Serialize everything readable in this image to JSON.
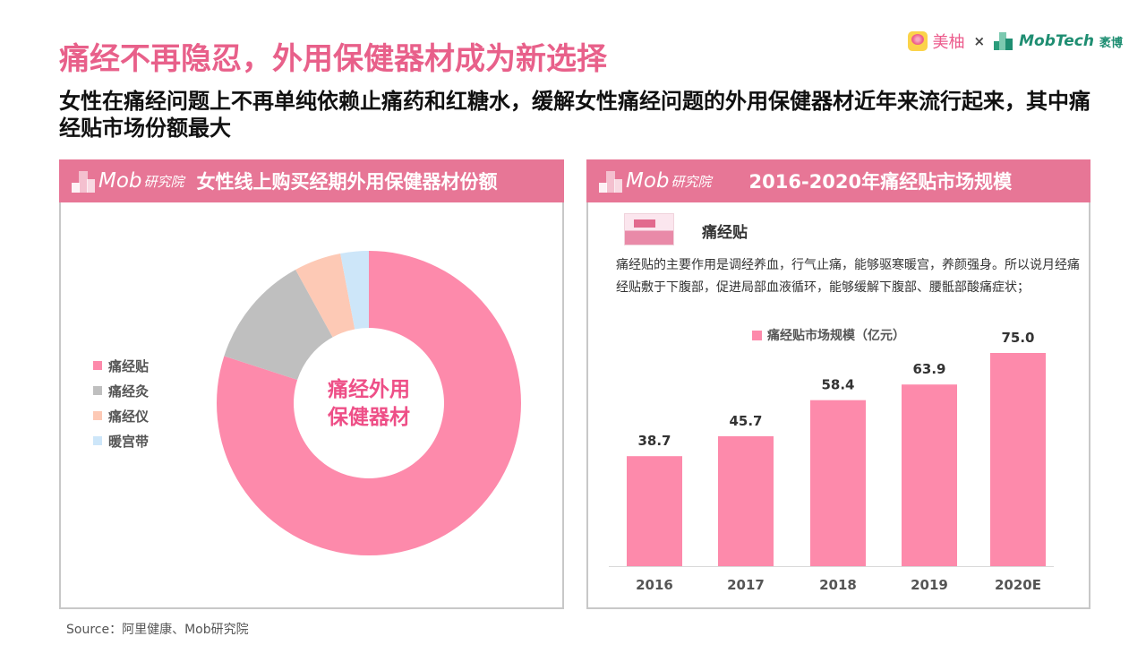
{
  "header": {
    "title": "痛经不再隐忍，外用保健器材成为新选择",
    "subtitle": "女性在痛经问题上不再单纯依赖止痛药和红糖水，缓解女性痛经问题的外用保健器材近年来流行起来，其中痛经贴市场份额最大",
    "brand_left": "美柚",
    "brand_times": "×",
    "brand_right": "MobTech",
    "brand_right_cn": "袤博"
  },
  "panels": {
    "logo_text": "Mob",
    "logo_cn": "研究院",
    "left_title": "女性线上购买经期外用保健器材份额",
    "right_title": "2016-2020年痛经贴市场规模"
  },
  "product": {
    "name": "痛经贴",
    "description": "痛经贴的主要作用是调经养血，行气止痛，能够驱寒暖宫，养颜强身。所以说月经痛经贴敷于下腹部，促进局部血液循环，能够缓解下腹部、腰骶部酸痛症状；"
  },
  "source": "Source：阿里健康、Mob研究院",
  "chart_data": [
    {
      "type": "pie",
      "variant": "donut",
      "title": "女性线上购买经期外用保健器材份额",
      "center_label": [
        "痛经外用",
        "保健器材"
      ],
      "categories": [
        "痛经贴",
        "痛经灸",
        "痛经仪",
        "暖宫带"
      ],
      "values": [
        80,
        12,
        5,
        3
      ],
      "unit": "%",
      "colors": [
        "#fd8aab",
        "#bfbfbf",
        "#fdc9b5",
        "#cde6f9"
      ],
      "start": "12 o'clock",
      "direction": "clockwise",
      "legend_position": "left"
    },
    {
      "type": "bar",
      "title": "2016-2020年痛经贴市场规模",
      "series": [
        {
          "name": "痛经贴市场规模（亿元）",
          "values": [
            38.7,
            45.7,
            58.4,
            63.9,
            75.0
          ],
          "labels": [
            "38.7",
            "45.7",
            "58.4",
            "63.9",
            "75.0"
          ],
          "color": "#fd8aab"
        }
      ],
      "categories": [
        "2016",
        "2017",
        "2018",
        "2019",
        "2020E"
      ],
      "xlabel": "",
      "ylabel": "",
      "ylim": [
        0,
        75
      ],
      "grid": false,
      "legend_position": "top"
    }
  ]
}
